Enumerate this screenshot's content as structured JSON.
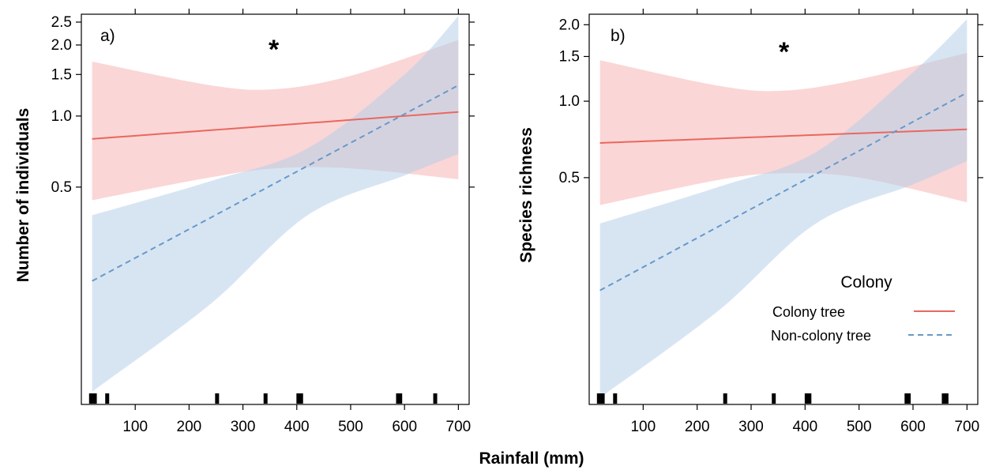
{
  "figure": {
    "xlabel": "Rainfall (mm)"
  },
  "chart_data": [
    {
      "type": "line",
      "panel_label": "a)",
      "annotation": "*",
      "title": "",
      "xlabel": "Rainfall (mm)",
      "ylabel": "Number of individuals",
      "y_scale": "log",
      "xlim": [
        0,
        720
      ],
      "ylim": [
        0.06,
        2.7
      ],
      "x_ticks": [
        100,
        200,
        300,
        400,
        500,
        600,
        700
      ],
      "y_ticks": [
        0.5,
        1.0,
        1.5,
        2.0,
        2.5
      ],
      "y_tick_labels": [
        "0.5",
        "1.0",
        "1.5",
        "2.0",
        "2.5"
      ],
      "grid": false,
      "series": [
        {
          "name": "Colony tree",
          "color": "#E8685F",
          "band_color": "#F8B4B4",
          "line_style": "solid",
          "x": [
            20,
            700
          ],
          "y": [
            0.8,
            1.04
          ],
          "ci_x": [
            20,
            240,
            360,
            500,
            700
          ],
          "ci_lower": [
            0.44,
            0.55,
            0.6,
            0.6,
            0.54
          ],
          "ci_upper": [
            1.7,
            1.35,
            1.3,
            1.48,
            2.1
          ]
        },
        {
          "name": "Non-colony tree",
          "color": "#6899C8",
          "band_color": "#B7D0EA",
          "line_style": "dashed",
          "x": [
            20,
            700
          ],
          "y": [
            0.2,
            1.35
          ],
          "ci_x": [
            20,
            240,
            420,
            600,
            700
          ],
          "ci_lower": [
            0.068,
            0.16,
            0.38,
            0.56,
            0.69
          ],
          "ci_upper": [
            0.38,
            0.53,
            0.73,
            1.5,
            2.65
          ]
        }
      ],
      "rug_x": [
        18,
        25,
        48,
        252,
        342,
        403,
        408,
        588,
        592,
        657
      ]
    },
    {
      "type": "line",
      "panel_label": "b)",
      "annotation": "*",
      "title": "",
      "xlabel": "Rainfall (mm)",
      "ylabel": "Species richness",
      "y_scale": "log",
      "xlim": [
        0,
        720
      ],
      "ylim": [
        0.064,
        2.2
      ],
      "x_ticks": [
        100,
        200,
        300,
        400,
        500,
        600,
        700
      ],
      "y_ticks": [
        0.5,
        1.0,
        1.5,
        2.0
      ],
      "y_tick_labels": [
        "0.5",
        "1.0",
        "1.5",
        "2.0"
      ],
      "grid": false,
      "series": [
        {
          "name": "Colony tree",
          "color": "#E8685F",
          "band_color": "#F8B4B4",
          "line_style": "solid",
          "x": [
            20,
            700
          ],
          "y": [
            0.685,
            0.775
          ],
          "ci_x": [
            20,
            240,
            360,
            500,
            700
          ],
          "ci_lower": [
            0.39,
            0.49,
            0.52,
            0.5,
            0.4
          ],
          "ci_upper": [
            1.45,
            1.15,
            1.1,
            1.22,
            1.55
          ]
        },
        {
          "name": "Non-colony tree",
          "color": "#6899C8",
          "band_color": "#B7D0EA",
          "line_style": "dashed",
          "x": [
            20,
            700
          ],
          "y": [
            0.18,
            1.08
          ],
          "ci_x": [
            20,
            240,
            420,
            600,
            700
          ],
          "ci_lower": [
            0.068,
            0.15,
            0.33,
            0.47,
            0.58
          ],
          "ci_upper": [
            0.33,
            0.46,
            0.63,
            1.3,
            2.1
          ]
        }
      ],
      "rug_x": [
        18,
        25,
        48,
        252,
        342,
        403,
        408,
        588,
        592,
        657,
        662
      ],
      "legend": {
        "title": "Colony",
        "placement": "bottom-right",
        "entries": [
          "Colony tree",
          "Non-colony tree"
        ]
      }
    }
  ]
}
